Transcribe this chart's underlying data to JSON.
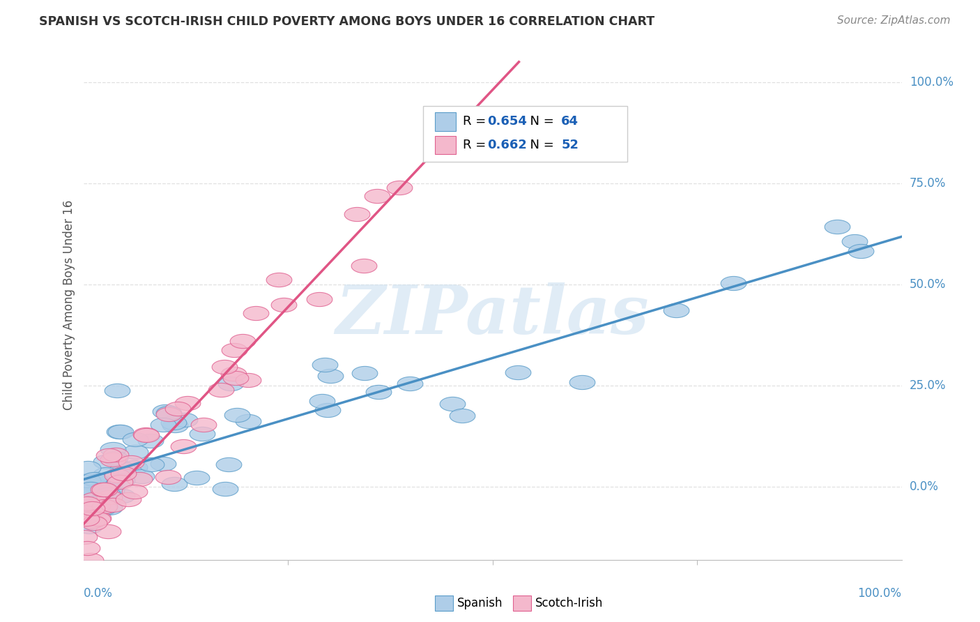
{
  "title": "SPANISH VS SCOTCH-IRISH CHILD POVERTY AMONG BOYS UNDER 16 CORRELATION CHART",
  "source": "Source: ZipAtlas.com",
  "ylabel": "Child Poverty Among Boys Under 16",
  "yticks_labels": [
    "0.0%",
    "25.0%",
    "50.0%",
    "75.0%",
    "100.0%"
  ],
  "ytick_vals": [
    0.0,
    0.25,
    0.5,
    0.75,
    1.0
  ],
  "spanish_color": "#aecde8",
  "scotch_color": "#f4b8cc",
  "spanish_edge_color": "#5b9dc9",
  "scotch_edge_color": "#e06090",
  "spanish_line_color": "#4a90c4",
  "scotch_line_color": "#e05585",
  "watermark": "ZIPatlas",
  "watermark_color": "#cce0f0",
  "spanish_R": 0.654,
  "spanish_N": 64,
  "scotch_R": 0.662,
  "scotch_N": 52,
  "background_color": "#ffffff",
  "grid_color": "#e0e0e0",
  "title_color": "#333333",
  "axis_label_color": "#4a90c4",
  "legend_val_color": "#1a5fb5",
  "source_color": "#888888"
}
